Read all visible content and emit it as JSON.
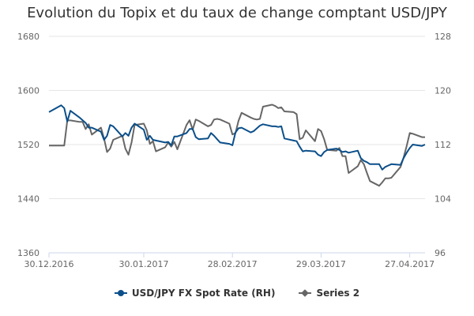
{
  "chart_data": {
    "type": "line",
    "title": "Evolution du Topix et du taux de change comptant USD/JPY",
    "x_tick_labels": [
      "30.12.2016",
      "30.01.2017",
      "28.02.2017",
      "29.03.2017",
      "27.04.2017"
    ],
    "x_range": [
      "30.12.2016",
      "02.05.2017"
    ],
    "y_left_ticks": [
      "1360",
      "1440",
      "1520",
      "1600",
      "1680"
    ],
    "y_left_range": [
      1360,
      1680
    ],
    "y_right_ticks": [
      "96",
      "104",
      "112",
      "120",
      "128"
    ],
    "y_right_range": [
      96,
      128
    ],
    "grid": "horizontal",
    "legend_position": "bottom",
    "series": [
      {
        "name": "USD/JPY FX Spot Rate (RH)",
        "axis": "right",
        "color": "#0b4f8a",
        "marker": "circle",
        "points": [
          [
            "30.12.2016",
            116.8
          ],
          [
            "03.01.2017",
            117.8
          ],
          [
            "04.01.2017",
            117.4
          ],
          [
            "05.01.2017",
            115.4
          ],
          [
            "06.01.2017",
            117.0
          ],
          [
            "09.01.2017",
            116.0
          ],
          [
            "10.01.2017",
            115.6
          ],
          [
            "11.01.2017",
            115.2
          ],
          [
            "12.01.2017",
            114.5
          ],
          [
            "13.01.2017",
            114.5
          ],
          [
            "16.01.2017",
            113.9
          ],
          [
            "17.01.2017",
            112.7
          ],
          [
            "18.01.2017",
            113.3
          ],
          [
            "19.01.2017",
            114.9
          ],
          [
            "20.01.2017",
            114.7
          ],
          [
            "23.01.2017",
            113.2
          ],
          [
            "24.01.2017",
            113.7
          ],
          [
            "25.01.2017",
            113.3
          ],
          [
            "26.01.2017",
            114.5
          ],
          [
            "27.01.2017",
            115.1
          ],
          [
            "30.01.2017",
            114.2
          ],
          [
            "31.01.2017",
            112.7
          ],
          [
            "01.02.2017",
            113.3
          ],
          [
            "02.02.2017",
            112.7
          ],
          [
            "03.02.2017",
            112.6
          ],
          [
            "06.02.2017",
            112.3
          ],
          [
            "07.02.2017",
            112.4
          ],
          [
            "08.02.2017",
            111.9
          ],
          [
            "09.02.2017",
            113.2
          ],
          [
            "10.02.2017",
            113.2
          ],
          [
            "13.02.2017",
            113.7
          ],
          [
            "14.02.2017",
            114.3
          ],
          [
            "15.02.2017",
            114.3
          ],
          [
            "16.02.2017",
            113.1
          ],
          [
            "17.02.2017",
            112.8
          ],
          [
            "20.02.2017",
            112.9
          ],
          [
            "21.02.2017",
            113.7
          ],
          [
            "22.02.2017",
            113.3
          ],
          [
            "23.02.2017",
            112.8
          ],
          [
            "24.02.2017",
            112.3
          ],
          [
            "27.02.2017",
            112.1
          ],
          [
            "28.02.2017",
            111.9
          ],
          [
            "01.03.2017",
            113.8
          ],
          [
            "02.03.2017",
            114.4
          ],
          [
            "03.03.2017",
            114.5
          ],
          [
            "06.03.2017",
            113.8
          ],
          [
            "07.03.2017",
            114.0
          ],
          [
            "08.03.2017",
            114.4
          ],
          [
            "09.03.2017",
            114.8
          ],
          [
            "10.03.2017",
            115.0
          ],
          [
            "13.03.2017",
            114.7
          ],
          [
            "14.03.2017",
            114.7
          ],
          [
            "15.03.2017",
            114.6
          ],
          [
            "16.03.2017",
            114.7
          ],
          [
            "17.03.2017",
            112.9
          ],
          [
            "20.03.2017",
            112.6
          ],
          [
            "21.03.2017",
            112.5
          ],
          [
            "22.03.2017",
            111.7
          ],
          [
            "23.03.2017",
            111.0
          ],
          [
            "24.03.2017",
            111.1
          ],
          [
            "27.03.2017",
            111.0
          ],
          [
            "28.03.2017",
            110.5
          ],
          [
            "29.03.2017",
            110.3
          ],
          [
            "30.03.2017",
            110.9
          ],
          [
            "31.03.2017",
            111.2
          ],
          [
            "03.04.2017",
            111.4
          ],
          [
            "04.04.2017",
            111.2
          ],
          [
            "05.04.2017",
            110.9
          ],
          [
            "06.04.2017",
            111.0
          ],
          [
            "07.04.2017",
            110.8
          ],
          [
            "10.04.2017",
            111.1
          ],
          [
            "11.04.2017",
            110.0
          ],
          [
            "12.04.2017",
            109.6
          ],
          [
            "13.04.2017",
            109.4
          ],
          [
            "14.04.2017",
            109.1
          ],
          [
            "17.04.2017",
            109.1
          ],
          [
            "18.04.2017",
            108.3
          ],
          [
            "19.04.2017",
            108.7
          ],
          [
            "20.04.2017",
            108.9
          ],
          [
            "21.04.2017",
            109.1
          ],
          [
            "24.04.2017",
            109.0
          ],
          [
            "25.04.2017",
            110.0
          ],
          [
            "26.04.2017",
            110.8
          ],
          [
            "27.04.2017",
            111.5
          ],
          [
            "28.04.2017",
            112.0
          ],
          [
            "01.05.2017",
            111.8
          ],
          [
            "02.05.2017",
            112.0
          ]
        ]
      },
      {
        "name": "Series 2",
        "axis": "left",
        "color": "#666666",
        "marker": "diamond",
        "points": [
          [
            "30.12.2016",
            1518.6
          ],
          [
            "03.01.2017",
            1518.6
          ],
          [
            "04.01.2017",
            1518.6
          ],
          [
            "05.01.2017",
            1555.7
          ],
          [
            "06.01.2017",
            1555.7
          ],
          [
            "09.01.2017",
            1553.5
          ],
          [
            "10.01.2017",
            1553.5
          ],
          [
            "11.01.2017",
            1543.0
          ],
          [
            "12.01.2017",
            1550.0
          ],
          [
            "13.01.2017",
            1534.7
          ],
          [
            "16.01.2017",
            1545.0
          ],
          [
            "17.01.2017",
            1529.0
          ],
          [
            "18.01.2017",
            1509.0
          ],
          [
            "19.01.2017",
            1514.0
          ],
          [
            "20.01.2017",
            1527.0
          ],
          [
            "23.01.2017",
            1533.0
          ],
          [
            "24.01.2017",
            1514.0
          ],
          [
            "25.01.2017",
            1505.0
          ],
          [
            "26.01.2017",
            1523.0
          ],
          [
            "27.01.2017",
            1549.0
          ],
          [
            "30.01.2017",
            1551.0
          ],
          [
            "31.01.2017",
            1541.0
          ],
          [
            "01.02.2017",
            1521.0
          ],
          [
            "02.02.2017",
            1525.0
          ],
          [
            "03.02.2017",
            1510.0
          ],
          [
            "06.02.2017",
            1516.0
          ],
          [
            "07.02.2017",
            1523.0
          ],
          [
            "08.02.2017",
            1517.0
          ],
          [
            "09.02.2017",
            1524.0
          ],
          [
            "10.02.2017",
            1513.0
          ],
          [
            "13.02.2017",
            1549.0
          ],
          [
            "14.02.2017",
            1556.0
          ],
          [
            "15.02.2017",
            1542.0
          ],
          [
            "16.02.2017",
            1557.0
          ],
          [
            "17.02.2017",
            1555.0
          ],
          [
            "20.02.2017",
            1547.0
          ],
          [
            "21.02.2017",
            1549.0
          ],
          [
            "22.02.2017",
            1557.0
          ],
          [
            "23.02.2017",
            1558.0
          ],
          [
            "24.02.2017",
            1557.0
          ],
          [
            "27.02.2017",
            1551.0
          ],
          [
            "28.02.2017",
            1535.0
          ],
          [
            "01.03.2017",
            1537.0
          ],
          [
            "02.03.2017",
            1555.0
          ],
          [
            "03.03.2017",
            1567.0
          ],
          [
            "06.03.2017",
            1560.0
          ],
          [
            "07.03.2017",
            1558.0
          ],
          [
            "08.03.2017",
            1557.0
          ],
          [
            "09.03.2017",
            1558.0
          ],
          [
            "10.03.2017",
            1576.0
          ],
          [
            "13.03.2017",
            1579.0
          ],
          [
            "14.03.2017",
            1577.0
          ],
          [
            "15.03.2017",
            1574.0
          ],
          [
            "16.03.2017",
            1575.0
          ],
          [
            "17.03.2017",
            1569.0
          ],
          [
            "20.03.2017",
            1568.0
          ],
          [
            "21.03.2017",
            1565.0
          ],
          [
            "22.03.2017",
            1528.0
          ],
          [
            "23.03.2017",
            1530.0
          ],
          [
            "24.03.2017",
            1541.0
          ],
          [
            "27.03.2017",
            1525.0
          ],
          [
            "28.03.2017",
            1543.0
          ],
          [
            "29.03.2017",
            1540.0
          ],
          [
            "30.03.2017",
            1528.0
          ],
          [
            "31.03.2017",
            1512.0
          ],
          [
            "03.04.2017",
            1511.0
          ],
          [
            "04.04.2017",
            1515.0
          ],
          [
            "05.04.2017",
            1503.0
          ],
          [
            "06.04.2017",
            1503.0
          ],
          [
            "07.04.2017",
            1478.0
          ],
          [
            "10.04.2017",
            1488.0
          ],
          [
            "11.04.2017",
            1497.0
          ],
          [
            "12.04.2017",
            1491.0
          ],
          [
            "13.04.2017",
            1478.0
          ],
          [
            "14.04.2017",
            1466.0
          ],
          [
            "17.04.2017",
            1459.0
          ],
          [
            "18.04.2017",
            1464.0
          ],
          [
            "19.04.2017",
            1470.0
          ],
          [
            "20.04.2017",
            1470.0
          ],
          [
            "21.04.2017",
            1471.0
          ],
          [
            "24.04.2017",
            1487.0
          ],
          [
            "25.04.2017",
            1501.0
          ],
          [
            "26.04.2017",
            1518.0
          ],
          [
            "27.04.2017",
            1537.0
          ],
          [
            "28.04.2017",
            1536.0
          ],
          [
            "01.05.2017",
            1531.0
          ],
          [
            "02.05.2017",
            1531.0
          ]
        ]
      }
    ]
  }
}
